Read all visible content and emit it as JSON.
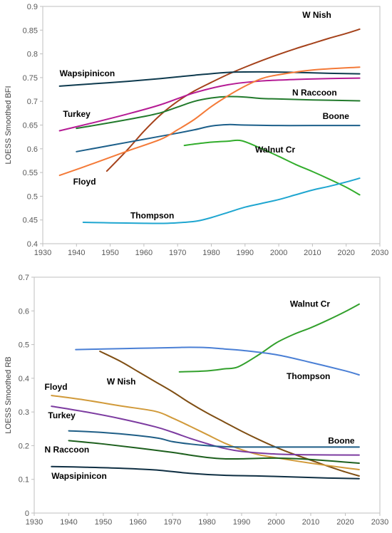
{
  "chart_data": [
    {
      "type": "line",
      "ylabel": "LOESS Smoothed BFI",
      "xlim": [
        1930,
        2030
      ],
      "ylim": [
        0.4,
        0.9
      ],
      "xticks": [
        1930,
        1940,
        1950,
        1960,
        1970,
        1980,
        1990,
        2000,
        2010,
        2020,
        2030
      ],
      "yticks": [
        "0.4",
        "0.45",
        "0.5",
        "0.55",
        "0.6",
        "0.65",
        "0.7",
        "0.75",
        "0.8",
        "0.85",
        "0.9"
      ],
      "grid": false,
      "series": [
        {
          "name": "W Nish",
          "color": "#a5421b",
          "x": [
            1949,
            1955,
            1960,
            1965,
            1970,
            1975,
            1980,
            1985,
            1990,
            1995,
            2000,
            2005,
            2010,
            2015,
            2020,
            2024
          ],
          "y": [
            0.553,
            0.597,
            0.637,
            0.672,
            0.7,
            0.722,
            0.74,
            0.757,
            0.772,
            0.786,
            0.799,
            0.811,
            0.822,
            0.833,
            0.843,
            0.852
          ]
        },
        {
          "name": "Wapsipinicon",
          "color": "#0e3a4e",
          "x": [
            1935,
            1945,
            1955,
            1965,
            1975,
            1985,
            1995,
            2005,
            2015,
            2024
          ],
          "y": [
            0.732,
            0.737,
            0.742,
            0.748,
            0.755,
            0.761,
            0.762,
            0.761,
            0.759,
            0.758
          ]
        },
        {
          "name": "N Raccoon",
          "color": "#227a2c",
          "x": [
            1940,
            1950,
            1960,
            1965,
            1970,
            1975,
            1980,
            1985,
            1990,
            1995,
            2000,
            2010,
            2024
          ],
          "y": [
            0.643,
            0.655,
            0.668,
            0.676,
            0.688,
            0.7,
            0.707,
            0.71,
            0.709,
            0.706,
            0.705,
            0.703,
            0.701
          ]
        },
        {
          "name": "Turkey",
          "color": "#b51b94",
          "x": [
            1935,
            1945,
            1955,
            1965,
            1975,
            1985,
            1995,
            2005,
            2015,
            2024
          ],
          "y": [
            0.638,
            0.655,
            0.673,
            0.693,
            0.718,
            0.735,
            0.743,
            0.746,
            0.748,
            0.749
          ]
        },
        {
          "name": "Boone",
          "color": "#1c5f8a",
          "x": [
            1940,
            1950,
            1960,
            1970,
            1975,
            1980,
            1985,
            1990,
            2000,
            2010,
            2024
          ],
          "y": [
            0.594,
            0.607,
            0.62,
            0.633,
            0.64,
            0.648,
            0.651,
            0.65,
            0.649,
            0.649,
            0.649
          ]
        },
        {
          "name": "Floyd",
          "color": "#f47a38",
          "x": [
            1935,
            1945,
            1955,
            1965,
            1970,
            1975,
            1980,
            1985,
            1990,
            1995,
            2000,
            2010,
            2024
          ],
          "y": [
            0.544,
            0.569,
            0.595,
            0.62,
            0.64,
            0.662,
            0.689,
            0.712,
            0.732,
            0.748,
            0.756,
            0.766,
            0.772
          ]
        },
        {
          "name": "Walnut Cr",
          "color": "#32ad2c",
          "x": [
            1972,
            1975,
            1980,
            1985,
            1989,
            1995,
            2000,
            2005,
            2010,
            2015,
            2020,
            2024
          ],
          "y": [
            0.607,
            0.61,
            0.614,
            0.616,
            0.617,
            0.6,
            0.584,
            0.567,
            0.552,
            0.536,
            0.519,
            0.503
          ]
        },
        {
          "name": "Thompson",
          "color": "#1fa6d0",
          "x": [
            1942,
            1950,
            1960,
            1967,
            1972,
            1976,
            1980,
            1985,
            1990,
            1995,
            2000,
            2005,
            2010,
            2015,
            2020,
            2024
          ],
          "y": [
            0.445,
            0.444,
            0.443,
            0.443,
            0.445,
            0.448,
            0.455,
            0.466,
            0.477,
            0.485,
            0.493,
            0.503,
            0.513,
            0.521,
            0.53,
            0.538
          ]
        }
      ],
      "labels": [
        {
          "text": "W Nish",
          "series": "W Nish",
          "x": 2007,
          "y": 0.876
        },
        {
          "text": "Wapsipinicon",
          "series": "Wapsipinicon",
          "x": 1935,
          "y": 0.753
        },
        {
          "text": "N Raccoon",
          "series": "N Raccoon",
          "x": 2004,
          "y": 0.712
        },
        {
          "text": "Turkey",
          "series": "Turkey",
          "x": 1936,
          "y": 0.667
        },
        {
          "text": "Boone",
          "series": "Boone",
          "x": 2013,
          "y": 0.663
        },
        {
          "text": "Floyd",
          "series": "Floyd",
          "x": 1939,
          "y": 0.525
        },
        {
          "text": "Walnut Cr",
          "series": "Walnut Cr",
          "x": 1993,
          "y": 0.592
        },
        {
          "text": "Thompson",
          "series": "Thompson",
          "x": 1956,
          "y": 0.453
        }
      ]
    },
    {
      "type": "line",
      "ylabel": "LOESS Smoothed RB",
      "xlim": [
        1930,
        2030
      ],
      "ylim": [
        0,
        0.7
      ],
      "xticks": [
        1930,
        1940,
        1950,
        1960,
        1970,
        1980,
        1990,
        2000,
        2010,
        2020,
        2030
      ],
      "yticks": [
        "0",
        "0.1",
        "0.2",
        "0.3",
        "0.4",
        "0.5",
        "0.6",
        "0.7"
      ],
      "grid": false,
      "series": [
        {
          "name": "Walnut Cr",
          "color": "#32a02c",
          "x": [
            1972,
            1980,
            1985,
            1989,
            1995,
            2000,
            2005,
            2010,
            2015,
            2020,
            2024
          ],
          "y": [
            0.419,
            0.422,
            0.428,
            0.434,
            0.47,
            0.505,
            0.53,
            0.55,
            0.573,
            0.598,
            0.62
          ]
        },
        {
          "name": "Thompson",
          "color": "#4a7fd5",
          "x": [
            1942,
            1950,
            1960,
            1970,
            1975,
            1980,
            1985,
            1990,
            2000,
            2010,
            2020,
            2024
          ],
          "y": [
            0.485,
            0.487,
            0.489,
            0.491,
            0.492,
            0.491,
            0.487,
            0.483,
            0.47,
            0.447,
            0.422,
            0.41
          ]
        },
        {
          "name": "W Nish",
          "color": "#7f4e13",
          "x": [
            1949,
            1955,
            1960,
            1965,
            1970,
            1975,
            1980,
            1985,
            1990,
            1995,
            2000,
            2005,
            2010,
            2015,
            2020,
            2024
          ],
          "y": [
            0.48,
            0.45,
            0.42,
            0.39,
            0.36,
            0.327,
            0.297,
            0.27,
            0.243,
            0.218,
            0.195,
            0.175,
            0.157,
            0.139,
            0.122,
            0.11
          ]
        },
        {
          "name": "Floyd",
          "color": "#d19a3a",
          "x": [
            1935,
            1945,
            1955,
            1965,
            1970,
            1975,
            1980,
            1985,
            1990,
            1995,
            2000,
            2010,
            2020,
            2024
          ],
          "y": [
            0.349,
            0.335,
            0.318,
            0.302,
            0.282,
            0.258,
            0.233,
            0.208,
            0.188,
            0.173,
            0.164,
            0.148,
            0.134,
            0.129
          ]
        },
        {
          "name": "Turkey",
          "color": "#7c3ba0",
          "x": [
            1935,
            1945,
            1955,
            1965,
            1970,
            1975,
            1980,
            1985,
            1990,
            2000,
            2010,
            2024
          ],
          "y": [
            0.317,
            0.3,
            0.28,
            0.256,
            0.24,
            0.222,
            0.206,
            0.192,
            0.183,
            0.175,
            0.173,
            0.172
          ]
        },
        {
          "name": "Boone",
          "color": "#1f5e86",
          "x": [
            1940,
            1950,
            1960,
            1966,
            1970,
            1975,
            1980,
            1985,
            1990,
            2000,
            2010,
            2024
          ],
          "y": [
            0.244,
            0.239,
            0.23,
            0.222,
            0.212,
            0.205,
            0.2,
            0.197,
            0.196,
            0.196,
            0.196,
            0.196
          ]
        },
        {
          "name": "N Raccoon",
          "color": "#1d5f1d",
          "x": [
            1940,
            1950,
            1960,
            1970,
            1975,
            1980,
            1985,
            1990,
            2000,
            2010,
            2024
          ],
          "y": [
            0.215,
            0.205,
            0.193,
            0.18,
            0.172,
            0.165,
            0.161,
            0.161,
            0.163,
            0.159,
            0.148
          ]
        },
        {
          "name": "Wapsipinicon",
          "color": "#0f2f43",
          "x": [
            1935,
            1945,
            1955,
            1965,
            1975,
            1985,
            1995,
            2005,
            2015,
            2024
          ],
          "y": [
            0.138,
            0.136,
            0.133,
            0.128,
            0.118,
            0.112,
            0.11,
            0.107,
            0.104,
            0.102
          ]
        }
      ],
      "labels": [
        {
          "text": "Walnut Cr",
          "series": "Walnut Cr",
          "x": 2004,
          "y": 0.612
        },
        {
          "text": "Thompson",
          "series": "Thompson",
          "x": 2003,
          "y": 0.398
        },
        {
          "text": "W Nish",
          "series": "W Nish",
          "x": 1951,
          "y": 0.382
        },
        {
          "text": "Floyd",
          "series": "Floyd",
          "x": 1933,
          "y": 0.366
        },
        {
          "text": "Turkey",
          "series": "Turkey",
          "x": 1934,
          "y": 0.281
        },
        {
          "text": "Boone",
          "series": "Boone",
          "x": 2015,
          "y": 0.206
        },
        {
          "text": "N Raccoon",
          "series": "N Raccoon",
          "x": 1933,
          "y": 0.18
        },
        {
          "text": "Wapsipinicon",
          "series": "Wapsipinicon",
          "x": 1935,
          "y": 0.101
        }
      ]
    }
  ]
}
